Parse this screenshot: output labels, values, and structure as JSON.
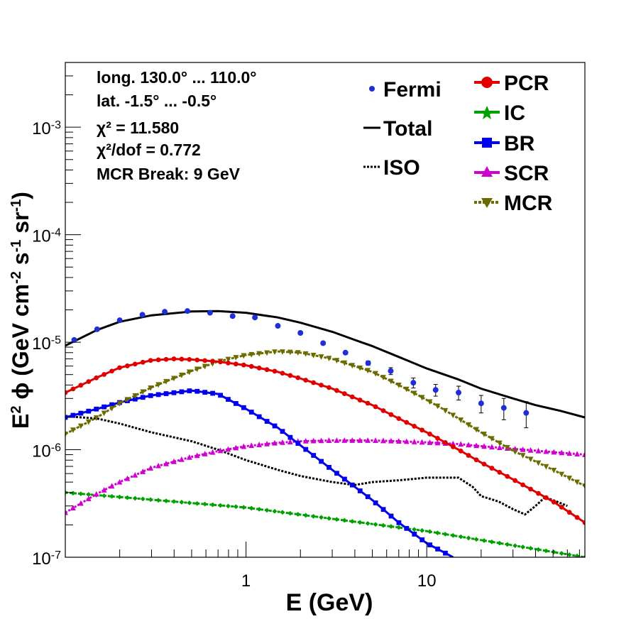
{
  "chart_data": {
    "type": "line",
    "title": "",
    "xlabel": "E (GeV)",
    "ylabel": "E² ϕ (GeV cm⁻² s⁻¹ sr⁻¹)",
    "x_scale": "log",
    "y_scale": "log",
    "xlim": [
      0.1,
      75
    ],
    "ylim": [
      1e-07,
      0.004
    ],
    "grid": false,
    "x_ticks": [
      {
        "value": 1,
        "label": "1"
      },
      {
        "value": 10,
        "label": "10"
      }
    ],
    "y_ticks": [
      {
        "value": 1e-07,
        "mant": "10",
        "exp": "-7"
      },
      {
        "value": 1e-06,
        "mant": "10",
        "exp": "-6"
      },
      {
        "value": 1e-05,
        "mant": "10",
        "exp": "-5"
      },
      {
        "value": 0.0001,
        "mant": "10",
        "exp": "-4"
      },
      {
        "value": 0.001,
        "mant": "10",
        "exp": "-3"
      }
    ],
    "info_lines": [
      "long. 130.0° ... 110.0°",
      "lat. -1.5° ... -0.5°",
      "χ² = 11.580",
      "χ²/dof = 0.772",
      "MCR Break:  9 GeV"
    ],
    "legend_position": "top-right",
    "fermi": {
      "name": "Fermi",
      "color": "#1f2fd8",
      "points": [
        {
          "x": 0.112,
          "y": 1.05e-05,
          "err": 0
        },
        {
          "x": 0.15,
          "y": 1.32e-05,
          "err": 0
        },
        {
          "x": 0.2,
          "y": 1.6e-05,
          "err": 0
        },
        {
          "x": 0.267,
          "y": 1.8e-05,
          "err": 0
        },
        {
          "x": 0.355,
          "y": 1.92e-05,
          "err": 0
        },
        {
          "x": 0.474,
          "y": 1.95e-05,
          "err": 0
        },
        {
          "x": 0.632,
          "y": 1.88e-05,
          "err": 0
        },
        {
          "x": 0.843,
          "y": 1.75e-05,
          "err": 0
        },
        {
          "x": 1.12,
          "y": 1.7e-05,
          "err": 0
        },
        {
          "x": 1.5,
          "y": 1.42e-05,
          "err": 0
        },
        {
          "x": 2.0,
          "y": 1.22e-05,
          "err": 0
        },
        {
          "x": 2.67,
          "y": 9.8e-06,
          "err": 0
        },
        {
          "x": 3.55,
          "y": 8e-06,
          "err": 0
        },
        {
          "x": 4.74,
          "y": 6.4e-06,
          "err": 3e-07
        },
        {
          "x": 6.32,
          "y": 5.4e-06,
          "err": 4e-07
        },
        {
          "x": 8.43,
          "y": 4.2e-06,
          "err": 4.5e-07
        },
        {
          "x": 11.2,
          "y": 3.6e-06,
          "err": 4.5e-07
        },
        {
          "x": 15.0,
          "y": 3.4e-06,
          "err": 5e-07
        },
        {
          "x": 20.0,
          "y": 2.7e-06,
          "err": 5e-07
        },
        {
          "x": 26.7,
          "y": 2.45e-06,
          "err": 5.5e-07
        },
        {
          "x": 35.5,
          "y": 2.2e-06,
          "err": 6e-07
        }
      ]
    },
    "series": [
      {
        "name": "Total",
        "key": "total",
        "color": "#000000",
        "dash": "",
        "width": 3,
        "marker": "none",
        "x": [
          0.1,
          0.15,
          0.2,
          0.3,
          0.5,
          0.7,
          1.0,
          1.5,
          2.0,
          3.0,
          4.0,
          5.0,
          7.0,
          10,
          15,
          20,
          30,
          40,
          55,
          75
        ],
        "y": [
          9.3e-06,
          1.3e-05,
          1.55e-05,
          1.78e-05,
          1.93e-05,
          1.95e-05,
          1.88e-05,
          1.7e-05,
          1.52e-05,
          1.25e-05,
          1.05e-05,
          9.2e-06,
          7.3e-06,
          5.7e-06,
          4.5e-06,
          3.7e-06,
          3e-06,
          2.6e-06,
          2.3e-06,
          2e-06
        ]
      },
      {
        "name": "ISO",
        "key": "iso",
        "color": "#000000",
        "dash": "3 2",
        "width": 3,
        "marker": "none",
        "x": [
          0.1,
          0.15,
          0.2,
          0.3,
          0.5,
          0.7,
          1.0,
          1.5,
          2.0,
          3.0,
          4.0,
          5.0,
          7.0,
          10,
          15,
          18,
          20,
          25,
          30,
          35,
          40,
          45,
          50,
          60
        ],
        "y": [
          2.05e-06,
          1.95e-06,
          1.75e-06,
          1.45e-06,
          1.2e-06,
          1e-06,
          8e-07,
          6.5e-07,
          5.7e-07,
          5e-07,
          4.7e-07,
          5e-07,
          5.2e-07,
          5.5e-07,
          5.5e-07,
          4.5e-07,
          3.7e-07,
          3.3e-07,
          2.8e-07,
          2.5e-07,
          3e-07,
          3.6e-07,
          3.4e-07,
          3e-07
        ]
      },
      {
        "name": "PCR",
        "key": "pcr",
        "color": "#e00000",
        "dash": "",
        "width": 3,
        "marker": "circle",
        "x": [
          0.1,
          0.15,
          0.2,
          0.3,
          0.4,
          0.5,
          0.7,
          1.0,
          1.5,
          2.0,
          3.0,
          5.0,
          7.0,
          10,
          15,
          20,
          30,
          50,
          75
        ],
        "y": [
          3.4e-06,
          4.7e-06,
          5.8e-06,
          6.8e-06,
          7e-06,
          6.9e-06,
          6.6e-06,
          6.1e-06,
          5.3e-06,
          4.6e-06,
          3.7e-06,
          2.6e-06,
          1.95e-06,
          1.45e-06,
          1e-06,
          7.6e-07,
          5.3e-07,
          3.3e-07,
          2.1e-07
        ]
      },
      {
        "name": "IC",
        "key": "ic",
        "color": "#00a000",
        "dash": "4 2",
        "width": 3,
        "marker": "star",
        "x": [
          0.1,
          1.0,
          10,
          75
        ],
        "y": [
          4e-07,
          2.9e-07,
          1.75e-07,
          1e-07
        ]
      },
      {
        "name": "BR",
        "key": "br",
        "color": "#0000ee",
        "dash": "",
        "width": 3,
        "marker": "square",
        "x": [
          0.1,
          0.15,
          0.2,
          0.3,
          0.5,
          0.7,
          1.0,
          1.5,
          2.0,
          3.0,
          5.0,
          7.0,
          10,
          14
        ],
        "y": [
          2e-06,
          2.4e-06,
          2.75e-06,
          3.2e-06,
          3.55e-06,
          3.3e-06,
          2.4e-06,
          1.6e-06,
          1.1e-06,
          6.5e-07,
          3.4e-07,
          2.1e-07,
          1.35e-07,
          1e-07
        ]
      },
      {
        "name": "SCR",
        "key": "scr",
        "color": "#d000d0",
        "dash": "3 2",
        "width": 3,
        "marker": "triangle-up",
        "x": [
          0.1,
          0.15,
          0.2,
          0.3,
          0.5,
          0.7,
          1.0,
          1.5,
          2.0,
          3.0,
          5.0,
          7.0,
          10,
          15,
          20,
          30,
          50,
          75
        ],
        "y": [
          2.6e-07,
          3.9e-07,
          5e-07,
          6.8e-07,
          8.6e-07,
          9.7e-07,
          1.08e-06,
          1.16e-06,
          1.2e-06,
          1.22e-06,
          1.22e-06,
          1.2e-06,
          1.17e-06,
          1.13e-06,
          1.08e-06,
          1.02e-06,
          9.5e-07,
          9e-07
        ]
      },
      {
        "name": "MCR",
        "key": "mcr",
        "color": "#6b6b00",
        "dash": "4 2",
        "width": 3,
        "marker": "triangle-down",
        "x": [
          0.1,
          0.15,
          0.2,
          0.3,
          0.5,
          0.7,
          1.0,
          1.5,
          2.0,
          3.0,
          5.0,
          7.0,
          9.0,
          12,
          15,
          20,
          30,
          50,
          75
        ],
        "y": [
          1.4e-06,
          2e-06,
          2.7e-06,
          3.8e-06,
          5.4e-06,
          6.6e-06,
          7.6e-06,
          8.2e-06,
          8e-06,
          7e-06,
          5.3e-06,
          4e-06,
          3.2e-06,
          2.45e-06,
          1.95e-06,
          1.45e-06,
          9.8e-07,
          6.5e-07,
          4.6e-07
        ]
      }
    ]
  }
}
